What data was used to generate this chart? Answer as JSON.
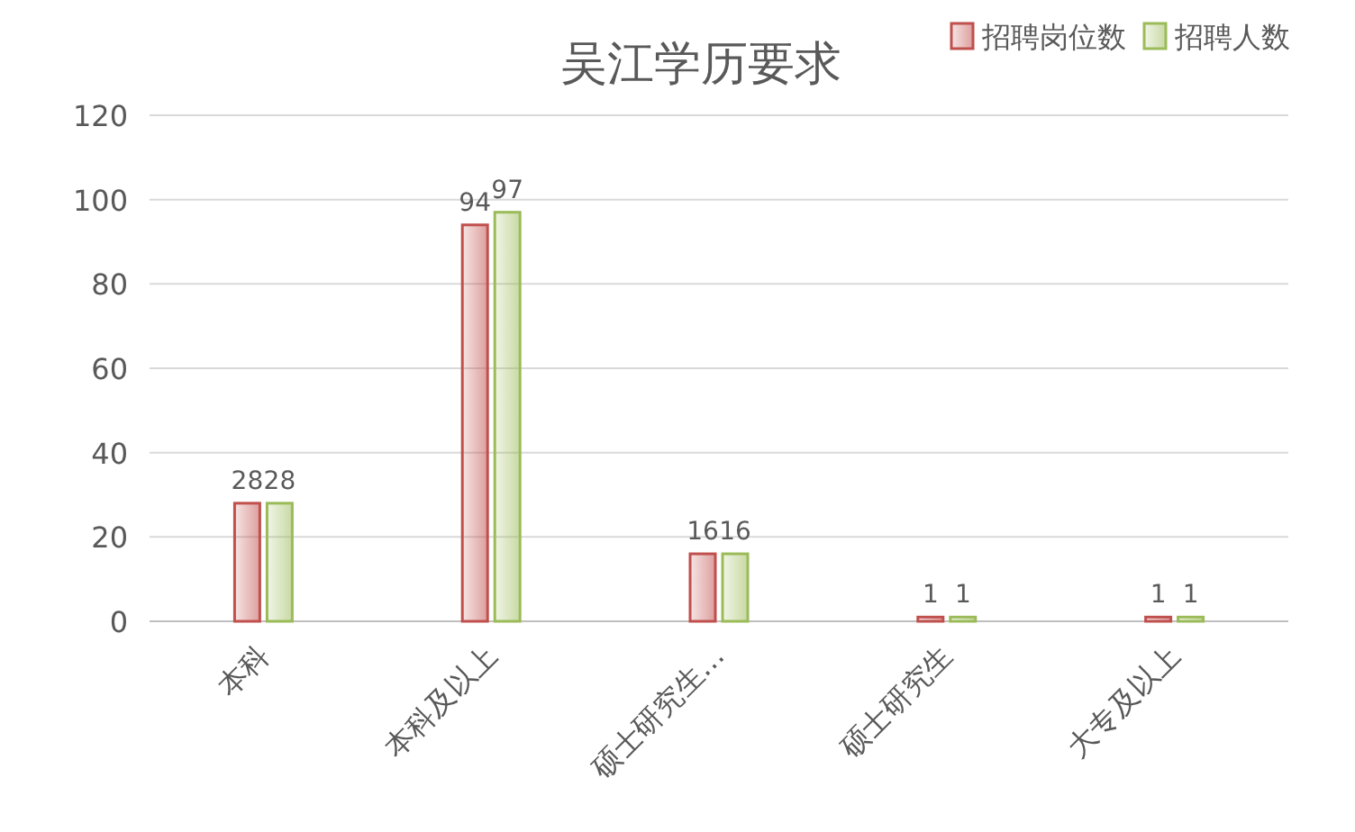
{
  "chart_data": {
    "type": "bar",
    "title": "吴江学历要求",
    "categories": [
      "本科",
      "本科及以上",
      "硕士研究生…",
      "硕士研究生",
      "大专及以上"
    ],
    "series": [
      {
        "name": "招聘岗位数",
        "color": "#c0504d",
        "values": [
          28,
          94,
          16,
          1,
          1
        ]
      },
      {
        "name": "招聘人数",
        "color": "#9bbb59",
        "values": [
          28,
          97,
          16,
          1,
          1
        ]
      }
    ],
    "ylim": [
      0,
      120
    ],
    "yticks": [
      0,
      20,
      40,
      60,
      80,
      100,
      120
    ],
    "grid": "y",
    "legend": "top right",
    "data_labels": true
  }
}
